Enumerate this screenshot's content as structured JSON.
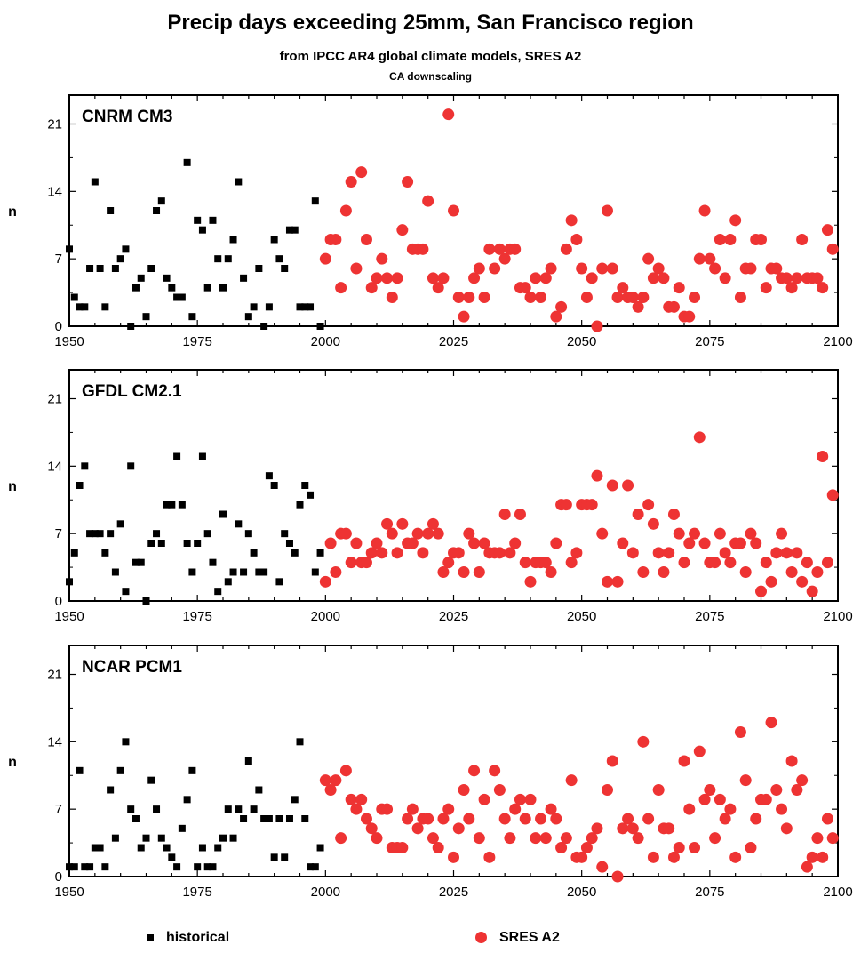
{
  "header": {
    "title": "Precip days exceeding 25mm, San Francisco region",
    "subtitle": "from IPCC AR4 global climate models, SRES A2",
    "subsubtitle": "CA downscaling"
  },
  "legend": {
    "historical": "historical",
    "sres": "SRES A2"
  },
  "colors": {
    "historical": "#000000",
    "sres": "#ee3333",
    "background": "#ffffff"
  },
  "chart_data": [
    {
      "type": "scatter",
      "title": "CNRM CM3",
      "xlabel": "",
      "ylabel": "n",
      "xlim": [
        1950,
        2100
      ],
      "ylim": [
        0,
        24
      ],
      "xticks": [
        1950,
        1975,
        2000,
        2025,
        2050,
        2075,
        2100
      ],
      "yticks": [
        0,
        7,
        14,
        21
      ],
      "grid": false,
      "series": [
        {
          "name": "historical",
          "marker": "square",
          "x": [
            1950,
            1951,
            1952,
            1953,
            1954,
            1955,
            1956,
            1957,
            1958,
            1959,
            1960,
            1961,
            1962,
            1963,
            1964,
            1965,
            1966,
            1967,
            1968,
            1969,
            1970,
            1971,
            1972,
            1973,
            1974,
            1975,
            1976,
            1977,
            1978,
            1979,
            1980,
            1981,
            1982,
            1983,
            1984,
            1985,
            1986,
            1987,
            1988,
            1989,
            1990,
            1991,
            1992,
            1993,
            1994,
            1995,
            1996,
            1997,
            1998,
            1999
          ],
          "y": [
            8,
            3,
            2,
            2,
            6,
            15,
            6,
            2,
            12,
            6,
            7,
            8,
            0,
            4,
            5,
            1,
            6,
            12,
            13,
            5,
            4,
            3,
            3,
            17,
            1,
            11,
            10,
            4,
            11,
            7,
            4,
            7,
            9,
            15,
            5,
            1,
            2,
            6,
            0,
            2,
            9,
            7,
            6,
            10,
            10,
            2,
            2,
            2,
            13,
            0
          ]
        },
        {
          "name": "SRES A2",
          "marker": "circle",
          "x": [
            2000,
            2001,
            2002,
            2003,
            2004,
            2005,
            2006,
            2007,
            2008,
            2009,
            2010,
            2011,
            2012,
            2013,
            2014,
            2015,
            2016,
            2017,
            2018,
            2019,
            2020,
            2021,
            2022,
            2023,
            2024,
            2025,
            2026,
            2027,
            2028,
            2029,
            2030,
            2031,
            2032,
            2033,
            2034,
            2035,
            2036,
            2037,
            2038,
            2039,
            2040,
            2041,
            2042,
            2043,
            2044,
            2045,
            2046,
            2047,
            2048,
            2049,
            2050,
            2051,
            2052,
            2053,
            2054,
            2055,
            2056,
            2057,
            2058,
            2059,
            2060,
            2061,
            2062,
            2063,
            2064,
            2065,
            2066,
            2067,
            2068,
            2069,
            2070,
            2071,
            2072,
            2073,
            2074,
            2075,
            2076,
            2077,
            2078,
            2079,
            2080,
            2081,
            2082,
            2083,
            2084,
            2085,
            2086,
            2087,
            2088,
            2089,
            2090,
            2091,
            2092,
            2093,
            2094,
            2095,
            2096,
            2097,
            2098,
            2099
          ],
          "y": [
            7,
            9,
            9,
            4,
            12,
            15,
            6,
            16,
            9,
            4,
            5,
            7,
            5,
            3,
            5,
            10,
            15,
            8,
            8,
            8,
            13,
            5,
            4,
            5,
            22,
            12,
            3,
            1,
            3,
            5,
            6,
            3,
            8,
            6,
            8,
            7,
            8,
            8,
            4,
            4,
            3,
            5,
            3,
            5,
            6,
            1,
            2,
            8,
            11,
            9,
            6,
            3,
            5,
            0,
            6,
            12,
            6,
            3,
            4,
            3,
            3,
            2,
            3,
            7,
            5,
            6,
            5,
            2,
            2,
            4,
            1,
            1,
            3,
            7,
            12,
            7,
            6,
            9,
            5,
            9,
            11,
            3,
            6,
            6,
            9,
            9,
            4,
            6,
            6,
            5,
            5,
            4,
            5,
            9,
            5,
            5,
            5,
            4,
            10,
            8
          ]
        }
      ]
    },
    {
      "type": "scatter",
      "title": "GFDL CM2.1",
      "xlabel": "",
      "ylabel": "n",
      "xlim": [
        1950,
        2100
      ],
      "ylim": [
        0,
        24
      ],
      "xticks": [
        1950,
        1975,
        2000,
        2025,
        2050,
        2075,
        2100
      ],
      "yticks": [
        0,
        7,
        14,
        21
      ],
      "grid": false,
      "series": [
        {
          "name": "historical",
          "marker": "square",
          "x": [
            1950,
            1951,
            1952,
            1953,
            1954,
            1955,
            1956,
            1957,
            1958,
            1959,
            1960,
            1961,
            1962,
            1963,
            1964,
            1965,
            1966,
            1967,
            1968,
            1969,
            1970,
            1971,
            1972,
            1973,
            1974,
            1975,
            1976,
            1977,
            1978,
            1979,
            1980,
            1981,
            1982,
            1983,
            1984,
            1985,
            1986,
            1987,
            1988,
            1989,
            1990,
            1991,
            1992,
            1993,
            1994,
            1995,
            1996,
            1997,
            1998,
            1999
          ],
          "y": [
            2,
            5,
            12,
            14,
            7,
            7,
            7,
            5,
            7,
            3,
            8,
            1,
            14,
            4,
            4,
            0,
            6,
            7,
            6,
            10,
            10,
            15,
            10,
            6,
            3,
            6,
            15,
            7,
            4,
            1,
            9,
            2,
            3,
            8,
            3,
            7,
            5,
            3,
            3,
            13,
            12,
            2,
            7,
            6,
            5,
            10,
            12,
            11,
            3,
            5
          ]
        },
        {
          "name": "SRES A2",
          "marker": "circle",
          "x": [
            2000,
            2001,
            2002,
            2003,
            2004,
            2005,
            2006,
            2007,
            2008,
            2009,
            2010,
            2011,
            2012,
            2013,
            2014,
            2015,
            2016,
            2017,
            2018,
            2019,
            2020,
            2021,
            2022,
            2023,
            2024,
            2025,
            2026,
            2027,
            2028,
            2029,
            2030,
            2031,
            2032,
            2033,
            2034,
            2035,
            2036,
            2037,
            2038,
            2039,
            2040,
            2041,
            2042,
            2043,
            2044,
            2045,
            2046,
            2047,
            2048,
            2049,
            2050,
            2051,
            2052,
            2053,
            2054,
            2055,
            2056,
            2057,
            2058,
            2059,
            2060,
            2061,
            2062,
            2063,
            2064,
            2065,
            2066,
            2067,
            2068,
            2069,
            2070,
            2071,
            2072,
            2073,
            2074,
            2075,
            2076,
            2077,
            2078,
            2079,
            2080,
            2081,
            2082,
            2083,
            2084,
            2085,
            2086,
            2087,
            2088,
            2089,
            2090,
            2091,
            2092,
            2093,
            2094,
            2095,
            2096,
            2097,
            2098,
            2099
          ],
          "y": [
            2,
            6,
            3,
            7,
            7,
            4,
            6,
            4,
            4,
            5,
            6,
            5,
            8,
            7,
            5,
            8,
            6,
            6,
            7,
            5,
            7,
            8,
            7,
            3,
            4,
            5,
            5,
            3,
            7,
            6,
            3,
            6,
            5,
            5,
            5,
            9,
            5,
            6,
            9,
            4,
            2,
            4,
            4,
            4,
            3,
            6,
            10,
            10,
            4,
            5,
            10,
            10,
            10,
            13,
            7,
            2,
            12,
            2,
            6,
            12,
            5,
            9,
            3,
            10,
            8,
            5,
            3,
            5,
            9,
            7,
            4,
            6,
            7,
            17,
            6,
            4,
            4,
            7,
            5,
            4,
            6,
            6,
            3,
            7,
            6,
            1,
            4,
            2,
            5,
            7,
            5,
            3,
            5,
            2,
            4,
            1,
            3,
            15,
            4,
            11
          ]
        }
      ]
    },
    {
      "type": "scatter",
      "title": "NCAR PCM1",
      "xlabel": "",
      "ylabel": "n",
      "xlim": [
        1950,
        2100
      ],
      "ylim": [
        0,
        24
      ],
      "xticks": [
        1950,
        1975,
        2000,
        2025,
        2050,
        2075,
        2100
      ],
      "yticks": [
        0,
        7,
        14,
        21
      ],
      "grid": false,
      "series": [
        {
          "name": "historical",
          "marker": "square",
          "x": [
            1950,
            1951,
            1952,
            1953,
            1954,
            1955,
            1956,
            1957,
            1958,
            1959,
            1960,
            1961,
            1962,
            1963,
            1964,
            1965,
            1966,
            1967,
            1968,
            1969,
            1970,
            1971,
            1972,
            1973,
            1974,
            1975,
            1976,
            1977,
            1978,
            1979,
            1980,
            1981,
            1982,
            1983,
            1984,
            1985,
            1986,
            1987,
            1988,
            1989,
            1990,
            1991,
            1992,
            1993,
            1994,
            1995,
            1996,
            1997,
            1998,
            1999
          ],
          "y": [
            1,
            1,
            11,
            1,
            1,
            3,
            3,
            1,
            9,
            4,
            11,
            14,
            7,
            6,
            3,
            4,
            10,
            7,
            4,
            3,
            2,
            1,
            5,
            8,
            11,
            1,
            3,
            1,
            1,
            3,
            4,
            7,
            4,
            7,
            6,
            12,
            7,
            9,
            6,
            6,
            2,
            6,
            2,
            6,
            8,
            14,
            6,
            1,
            1,
            3
          ]
        },
        {
          "name": "SRES A2",
          "marker": "circle",
          "x": [
            2000,
            2001,
            2002,
            2003,
            2004,
            2005,
            2006,
            2007,
            2008,
            2009,
            2010,
            2011,
            2012,
            2013,
            2014,
            2015,
            2016,
            2017,
            2018,
            2019,
            2020,
            2021,
            2022,
            2023,
            2024,
            2025,
            2026,
            2027,
            2028,
            2029,
            2030,
            2031,
            2032,
            2033,
            2034,
            2035,
            2036,
            2037,
            2038,
            2039,
            2040,
            2041,
            2042,
            2043,
            2044,
            2045,
            2046,
            2047,
            2048,
            2049,
            2050,
            2051,
            2052,
            2053,
            2054,
            2055,
            2056,
            2057,
            2058,
            2059,
            2060,
            2061,
            2062,
            2063,
            2064,
            2065,
            2066,
            2067,
            2068,
            2069,
            2070,
            2071,
            2072,
            2073,
            2074,
            2075,
            2076,
            2077,
            2078,
            2079,
            2080,
            2081,
            2082,
            2083,
            2084,
            2085,
            2086,
            2087,
            2088,
            2089,
            2090,
            2091,
            2092,
            2093,
            2094,
            2095,
            2096,
            2097,
            2098,
            2099
          ],
          "y": [
            10,
            9,
            10,
            4,
            11,
            8,
            7,
            8,
            6,
            5,
            4,
            7,
            7,
            3,
            3,
            3,
            6,
            7,
            5,
            6,
            6,
            4,
            3,
            6,
            7,
            2,
            5,
            9,
            6,
            11,
            4,
            8,
            2,
            11,
            9,
            6,
            4,
            7,
            8,
            6,
            8,
            4,
            6,
            4,
            7,
            6,
            3,
            4,
            10,
            2,
            2,
            3,
            4,
            5,
            1,
            9,
            12,
            0,
            5,
            6,
            5,
            4,
            14,
            6,
            2,
            9,
            5,
            5,
            2,
            3,
            12,
            7,
            3,
            13,
            8,
            9,
            4,
            8,
            6,
            7,
            2,
            15,
            10,
            3,
            6,
            8,
            8,
            16,
            9,
            7,
            5,
            12,
            9,
            10,
            1,
            2,
            4,
            2,
            6,
            4
          ]
        }
      ]
    }
  ]
}
